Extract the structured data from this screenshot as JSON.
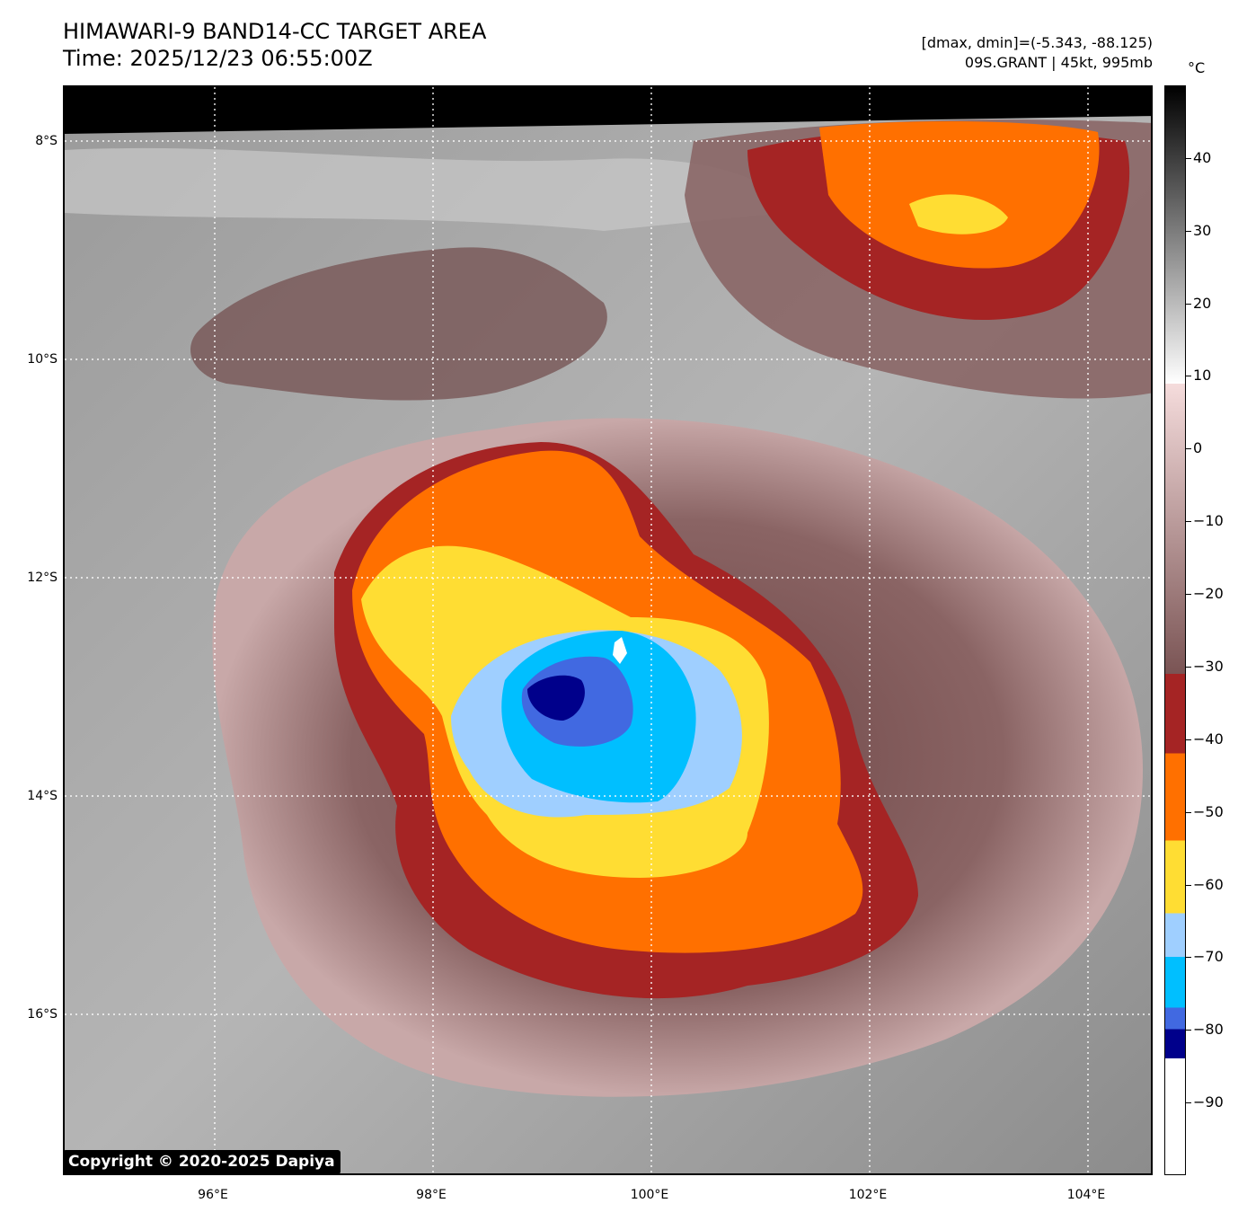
{
  "header": {
    "title_line1": "HIMAWARI-9 BAND14-CC TARGET AREA",
    "title_line2": "Time: 2025/12/23 06:55:00Z",
    "info_line1": "[dmax, dmin]=(-5.343, -88.125)",
    "info_line2": "09S.GRANT | 45kt, 995mb"
  },
  "copyright": "Copyright © 2020-2025 Dapiya",
  "axes": {
    "lat_labels": [
      "8°S",
      "10°S",
      "12°S",
      "14°S",
      "16°S"
    ],
    "lon_labels": [
      "96°E",
      "98°E",
      "100°E",
      "102°E",
      "104°E"
    ]
  },
  "colorbar": {
    "unit": "°C",
    "tick_labels": [
      "40",
      "30",
      "20",
      "10",
      "0",
      "−10",
      "−20",
      "−30",
      "−40",
      "−50",
      "−60",
      "−70",
      "−80",
      "−90"
    ],
    "tick_values": [
      40,
      30,
      20,
      10,
      0,
      -10,
      -20,
      -30,
      -40,
      -50,
      -60,
      -70,
      -80,
      -90
    ],
    "range": [
      -100,
      50
    ],
    "segments": [
      {
        "from": -100,
        "to": -84,
        "color": "#ffffff"
      },
      {
        "from": -84,
        "to": -80,
        "color": "#00008b"
      },
      {
        "from": -80,
        "to": -77,
        "color": "#4169e1"
      },
      {
        "from": -77,
        "to": -70,
        "color": "#00bfff"
      },
      {
        "from": -70,
        "to": -64,
        "color": "#9fcfff"
      },
      {
        "from": -64,
        "to": -54,
        "color": "#ffdd33"
      },
      {
        "from": -54,
        "to": -42,
        "color": "#ff7000"
      },
      {
        "from": -42,
        "to": -31,
        "color": "#a52424"
      },
      {
        "from": -31,
        "to": 9,
        "gradient": [
          "#f5dcdc",
          "#7a5454"
        ]
      },
      {
        "from": 9,
        "to": 50,
        "gradient": [
          "#000000",
          "#ffffff"
        ]
      }
    ]
  },
  "map": {
    "storm_colors": {
      "deep_blue": "#00008b",
      "royal_blue": "#4169e1",
      "sky_blue": "#00bfff",
      "light_blue": "#9fcfff",
      "yellow": "#ffdd33",
      "orange": "#ff7000",
      "dark_red": "#a52424",
      "mauve": "#7a5454"
    }
  }
}
